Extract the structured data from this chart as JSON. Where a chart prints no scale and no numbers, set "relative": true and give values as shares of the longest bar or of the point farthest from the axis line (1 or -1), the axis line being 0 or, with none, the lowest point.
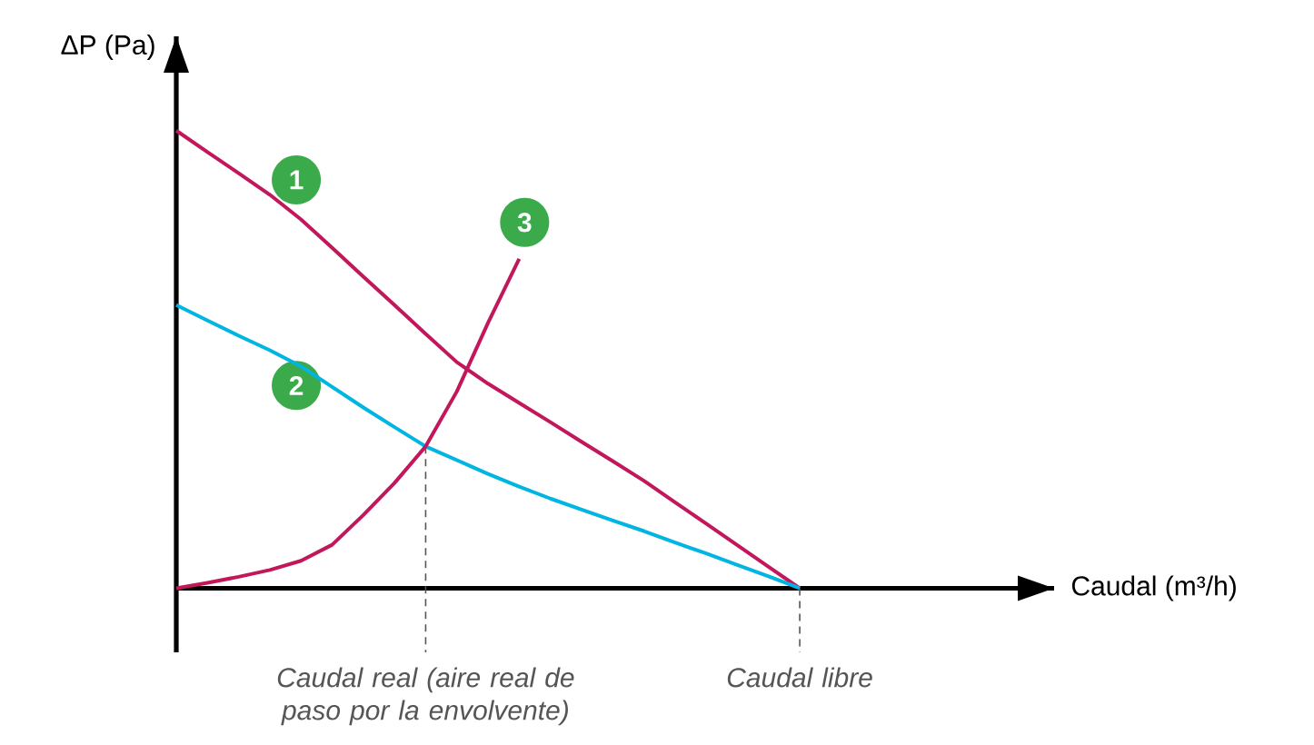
{
  "chart_data": {
    "type": "line",
    "relative": true,
    "xlabel": "Caudal (m³/h)",
    "ylabel": "ΔP (Pa)",
    "categories": [
      null,
      null,
      null,
      null,
      null,
      null,
      null,
      null,
      null,
      null,
      null,
      null,
      null,
      null,
      null,
      null,
      null,
      null,
      null,
      null,
      null,
      null,
      null,
      null,
      null,
      null,
      null,
      null,
      null
    ],
    "series": [
      {
        "name": "1",
        "color": "#c2185b",
        "values": [
          1.0,
          0.953,
          0.907,
          0.86,
          0.806,
          0.744,
          0.681,
          0.619,
          0.556,
          0.494,
          0.447,
          0.405,
          0.363,
          0.32,
          0.278,
          0.235,
          0.188,
          0.141,
          0.094,
          0.047,
          0,
          null,
          null,
          null,
          null,
          null,
          null,
          null,
          null
        ]
      },
      {
        "name": "2",
        "color": "#00b5e2",
        "values": [
          0.619,
          0.585,
          0.552,
          0.52,
          0.485,
          0.44,
          0.395,
          0.352,
          0.31,
          0.28,
          0.25,
          0.222,
          0.196,
          0.172,
          0.148,
          0.125,
          0.1,
          0.076,
          0.051,
          0.026,
          0,
          null,
          null,
          null,
          null,
          null,
          null,
          null,
          null
        ]
      },
      {
        "name": "3",
        "color": "#c2185b",
        "values": [
          0,
          0.012,
          0.025,
          0.04,
          0.06,
          0.095,
          0.16,
          0.23,
          0.31,
          0.43,
          0.58,
          0.72,
          null,
          null,
          null,
          null,
          null,
          null,
          null,
          null,
          null,
          null,
          null,
          null,
          null,
          null,
          null,
          null,
          null
        ]
      }
    ],
    "annotations": [
      "Caudal real (aire real de paso por la envolvente)",
      "Caudal libre"
    ]
  }
}
